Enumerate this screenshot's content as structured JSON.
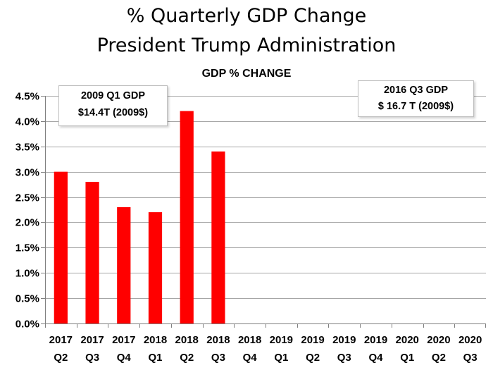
{
  "title_line1": "% Quarterly GDP Change",
  "title_line2": "President Trump Administration",
  "chart_data": {
    "type": "bar",
    "title": "GDP % CHANGE",
    "categories": [
      [
        "2017",
        "Q2"
      ],
      [
        "2017",
        "Q3"
      ],
      [
        "2017",
        "Q4"
      ],
      [
        "2018",
        "Q1"
      ],
      [
        "2018",
        "Q2"
      ],
      [
        "2018",
        "Q3"
      ],
      [
        "2018",
        "Q4"
      ],
      [
        "2019",
        "Q1"
      ],
      [
        "2019",
        "Q2"
      ],
      [
        "2019",
        "Q3"
      ],
      [
        "2019",
        "Q4"
      ],
      [
        "2020",
        "Q1"
      ],
      [
        "2020",
        "Q2"
      ],
      [
        "2020",
        "Q3"
      ]
    ],
    "values": [
      3.0,
      2.8,
      2.3,
      2.2,
      4.2,
      3.4,
      null,
      null,
      null,
      null,
      null,
      null,
      null,
      null
    ],
    "ylim": [
      0,
      4.5
    ],
    "yticks": [
      0,
      0.5,
      1.0,
      1.5,
      2.0,
      2.5,
      3.0,
      3.5,
      4.0,
      4.5
    ],
    "ytick_labels": [
      "0.0%",
      "0.5%",
      "1.0%",
      "1.5%",
      "2.0%",
      "2.5%",
      "3.0%",
      "3.5%",
      "4.0%",
      "4.5%"
    ],
    "xlabel": "",
    "ylabel": "",
    "grid": true,
    "bar_color": "#ff0000",
    "annotations": [
      {
        "line1": "2009 Q1 GDP",
        "line2": "$14.4T (2009$)"
      },
      {
        "line1": "2016 Q3 GDP",
        "line2": "$ 16.7 T  (2009$)"
      }
    ]
  }
}
